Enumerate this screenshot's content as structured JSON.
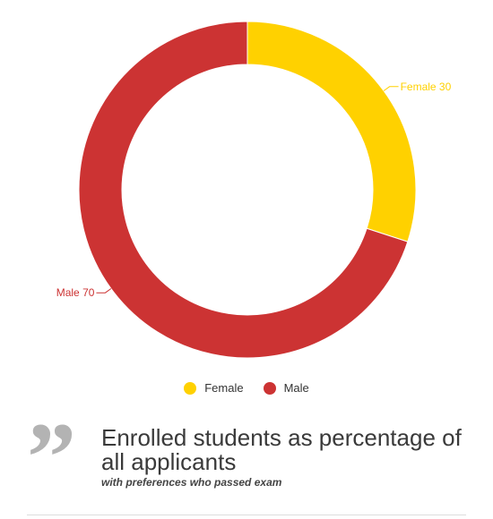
{
  "chart_data": {
    "type": "pie",
    "donut": true,
    "categories": [
      "Female",
      "Male"
    ],
    "values": [
      30,
      70
    ],
    "colors": [
      "#FFD100",
      "#CC3333"
    ],
    "data_labels": [
      "Female 30",
      "Male 70"
    ],
    "legend": [
      "Female",
      "Male"
    ],
    "legend_position": "bottom"
  },
  "caption": {
    "quote_icon": "quote-icon",
    "title": "Enrolled students as percentage of all applicants",
    "subtitle": "with preferences who passed exam"
  }
}
